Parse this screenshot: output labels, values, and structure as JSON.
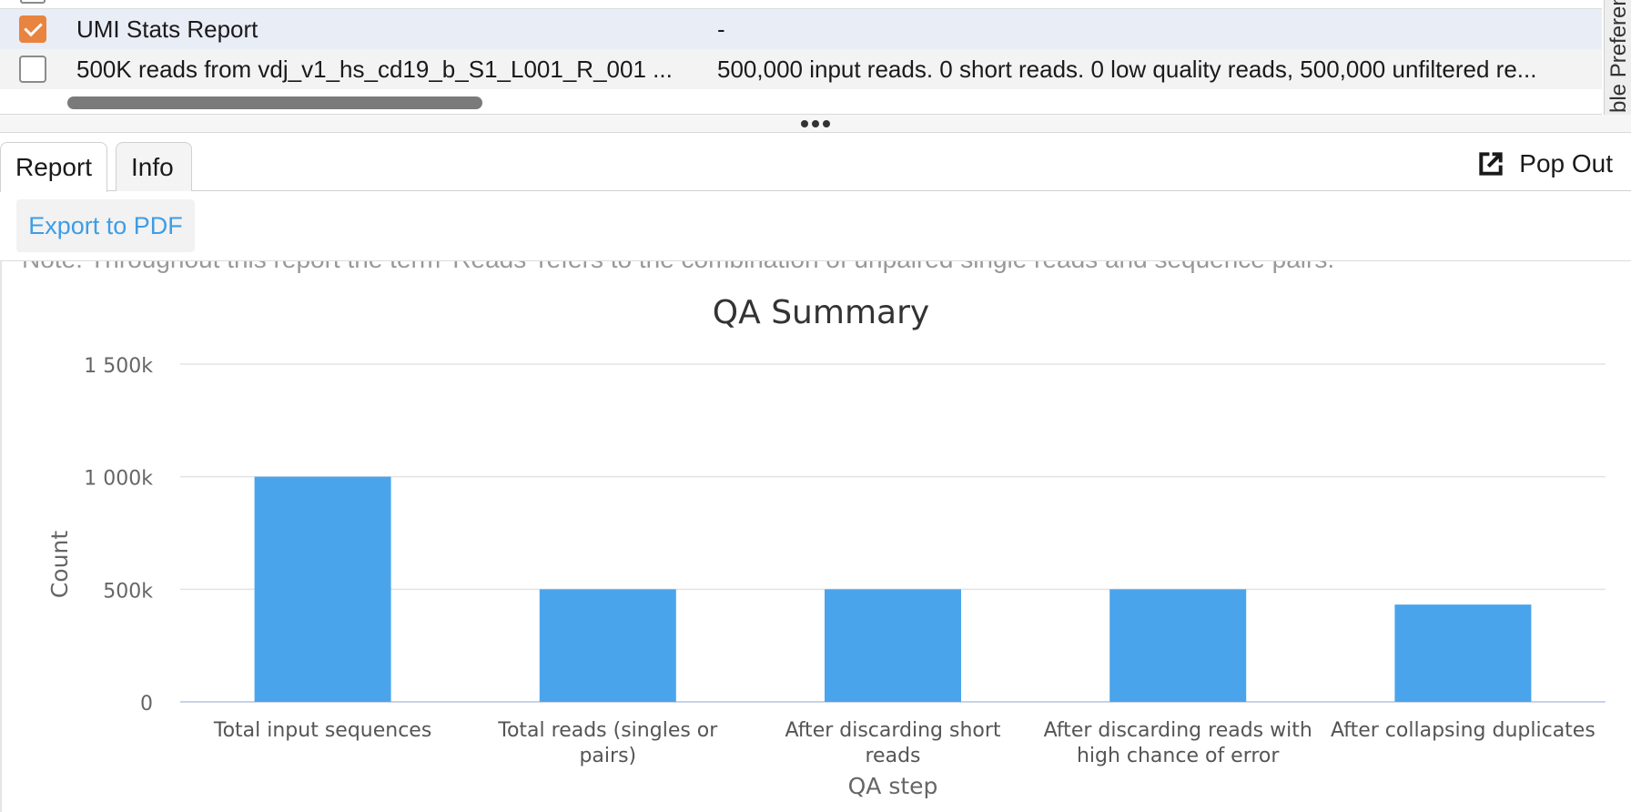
{
  "table": {
    "rows": [
      {
        "checked": true,
        "name": "UMI Stats Report",
        "description": "-"
      },
      {
        "checked": false,
        "name": "500K reads from vdj_v1_hs_cd19_b_S1_L001_R_001 ...",
        "description": "500,000 input reads. 0 short reads. 0 low quality reads, 500,000 unfiltered re..."
      }
    ]
  },
  "side_panel": {
    "label": "ble Preferen"
  },
  "tabs": [
    {
      "label": "Report",
      "active": true
    },
    {
      "label": "Info",
      "active": false
    }
  ],
  "popout": {
    "label": "Pop Out",
    "icon": "external-link-icon"
  },
  "toolbar": {
    "export_label": "Export to PDF"
  },
  "report": {
    "note": "Note: Throughout this report the term 'Reads' refers to the combination of unpaired single reads and sequence pairs."
  },
  "colors": {
    "accent": "#3d9de6",
    "bar": "#4aa4ec",
    "checkbox_checked": "#e8843f",
    "row_selected": "#e9edf6"
  },
  "chart_data": {
    "type": "bar",
    "title": "QA Summary",
    "xlabel": "QA step",
    "ylabel": "Count",
    "categories": [
      "Total input sequences",
      "Total reads (singles or pairs)",
      "After discarding short reads",
      "After discarding reads with high chance of error",
      "After collapsing duplicates"
    ],
    "category_lines": [
      [
        "Total input sequences"
      ],
      [
        "Total reads (singles or",
        "pairs)"
      ],
      [
        "After discarding short",
        "reads"
      ],
      [
        "After discarding reads with",
        "high chance of error"
      ],
      [
        "After collapsing duplicates"
      ]
    ],
    "values": [
      1000000,
      500000,
      500000,
      500000,
      432000
    ],
    "ylim": [
      0,
      1500000
    ],
    "yticks": [
      0,
      500000,
      1000000,
      1500000
    ],
    "ytick_labels": [
      "0",
      "500k",
      "1 000k",
      "1 500k"
    ],
    "grid": true,
    "legend": false
  }
}
